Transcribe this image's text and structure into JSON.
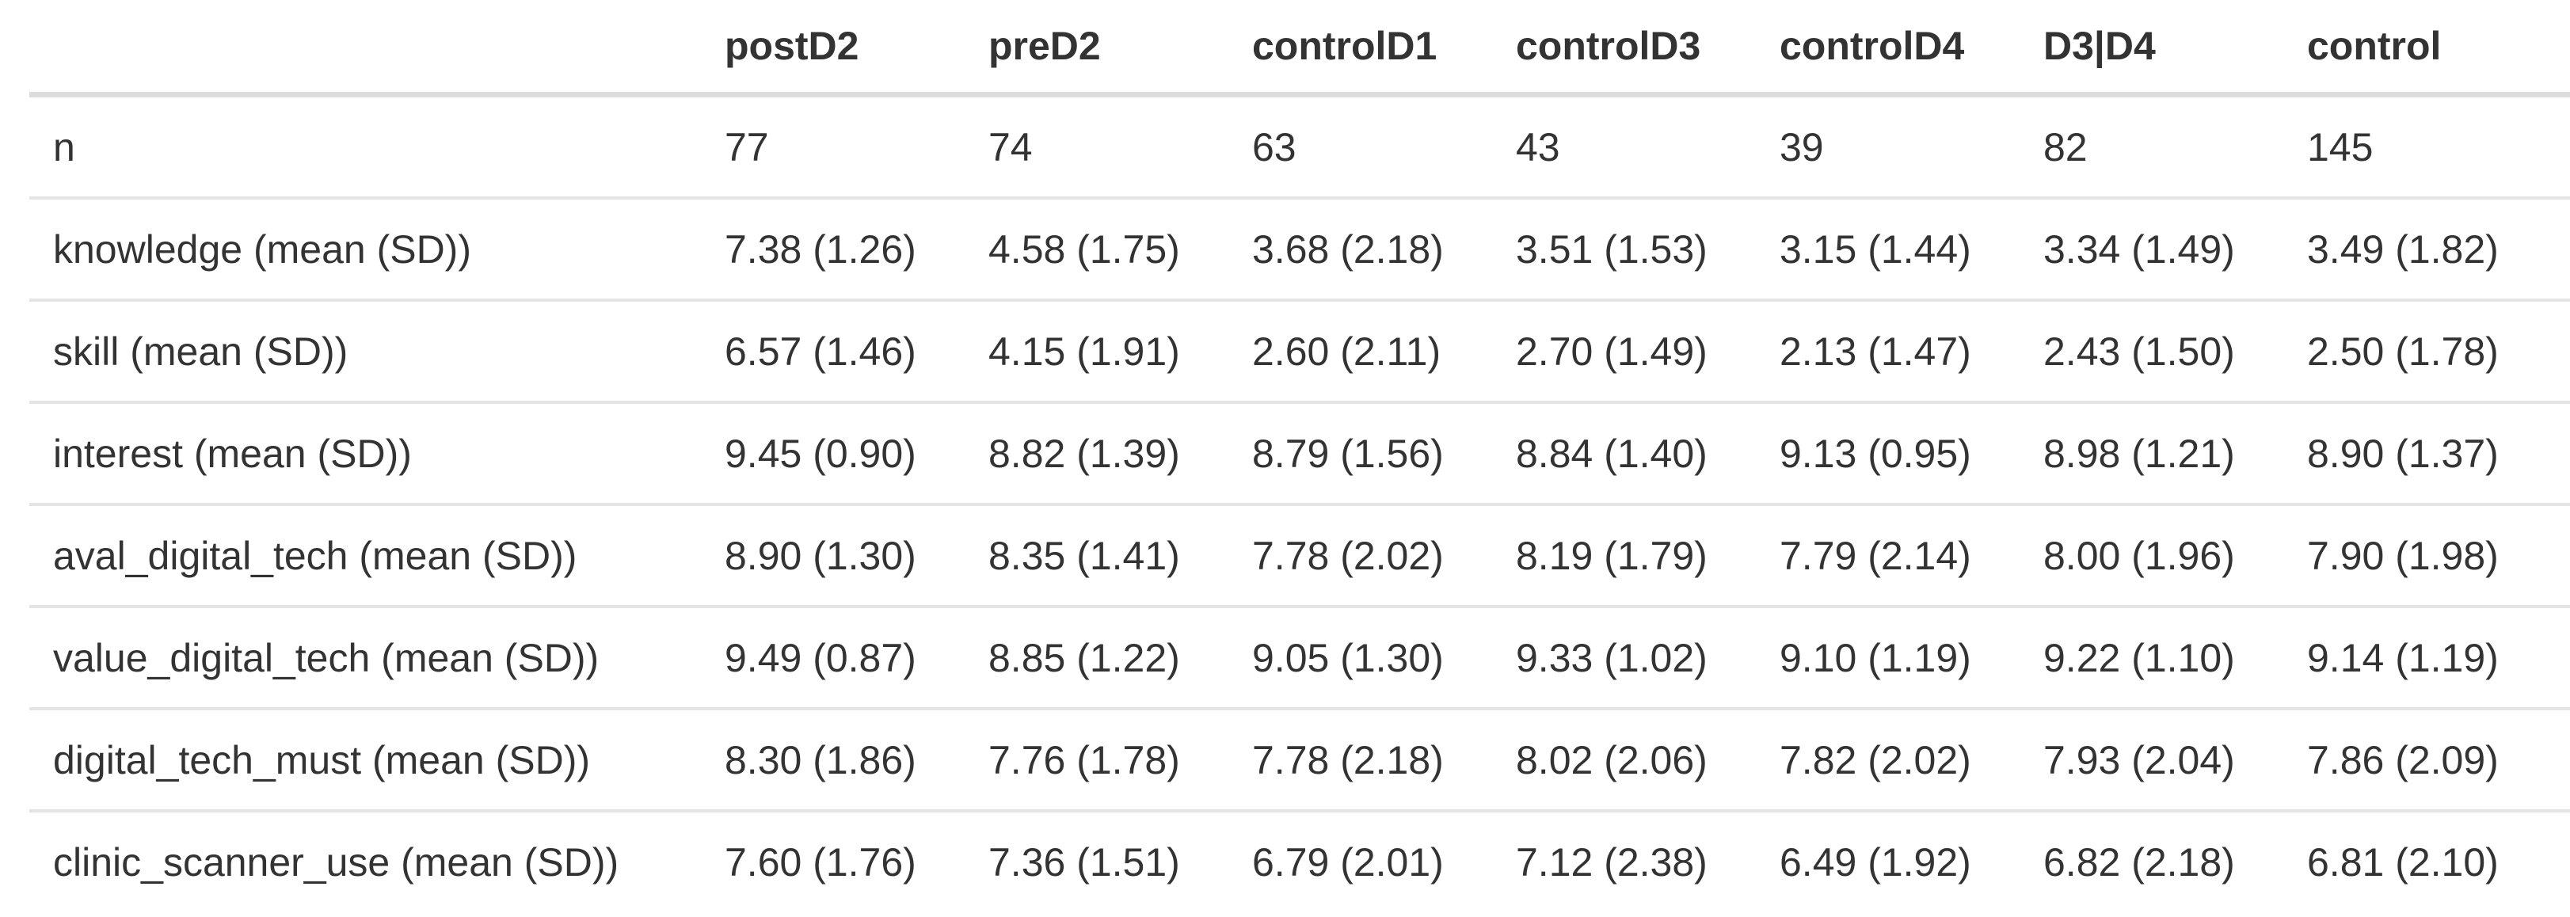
{
  "colors": {
    "background": "#ffffff",
    "text": "#333333",
    "header_rule": "#dcdcdc",
    "row_rule": "#e4e4e4"
  },
  "chart_data": {
    "type": "table",
    "title": "",
    "columns": [
      "",
      "postD2",
      "preD2",
      "controlD1",
      "controlD3",
      "controlD4",
      "D3|D4",
      "control"
    ],
    "rows": [
      {
        "label": "n",
        "values": [
          "77",
          "74",
          "63",
          "43",
          "39",
          "82",
          "145"
        ]
      },
      {
        "label": "knowledge (mean (SD))",
        "values": [
          "7.38 (1.26)",
          "4.58 (1.75)",
          "3.68 (2.18)",
          "3.51 (1.53)",
          "3.15 (1.44)",
          "3.34 (1.49)",
          "3.49 (1.82)"
        ]
      },
      {
        "label": "skill (mean (SD))",
        "values": [
          "6.57 (1.46)",
          "4.15 (1.91)",
          "2.60 (2.11)",
          "2.70 (1.49)",
          "2.13 (1.47)",
          "2.43 (1.50)",
          "2.50 (1.78)"
        ]
      },
      {
        "label": "interest (mean (SD))",
        "values": [
          "9.45 (0.90)",
          "8.82 (1.39)",
          "8.79 (1.56)",
          "8.84 (1.40)",
          "9.13 (0.95)",
          "8.98 (1.21)",
          "8.90 (1.37)"
        ]
      },
      {
        "label": "aval_digital_tech (mean (SD))",
        "values": [
          "8.90 (1.30)",
          "8.35 (1.41)",
          "7.78 (2.02)",
          "8.19 (1.79)",
          "7.79 (2.14)",
          "8.00 (1.96)",
          "7.90 (1.98)"
        ]
      },
      {
        "label": "value_digital_tech (mean (SD))",
        "values": [
          "9.49 (0.87)",
          "8.85 (1.22)",
          "9.05 (1.30)",
          "9.33 (1.02)",
          "9.10 (1.19)",
          "9.22 (1.10)",
          "9.14 (1.19)"
        ]
      },
      {
        "label": "digital_tech_must (mean (SD))",
        "values": [
          "8.30 (1.86)",
          "7.76 (1.78)",
          "7.78 (2.18)",
          "8.02 (2.06)",
          "7.82 (2.02)",
          "7.93 (2.04)",
          "7.86 (2.09)"
        ]
      },
      {
        "label": "clinic_scanner_use (mean (SD))",
        "values": [
          "7.60 (1.76)",
          "7.36 (1.51)",
          "6.79 (2.01)",
          "7.12 (2.38)",
          "6.49 (1.92)",
          "6.82 (2.18)",
          "6.81 (2.10)"
        ]
      }
    ]
  }
}
